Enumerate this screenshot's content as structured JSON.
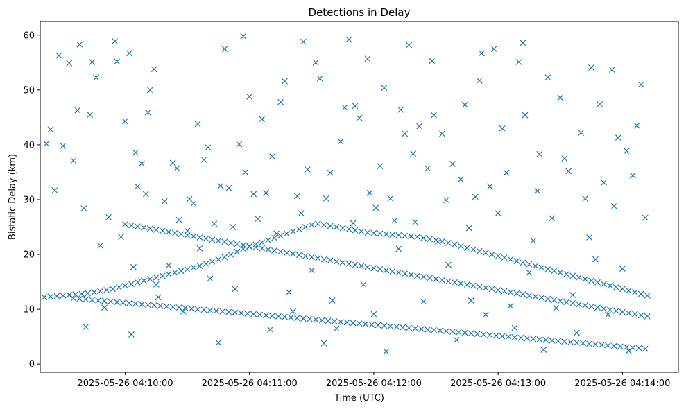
{
  "chart_data": {
    "type": "scatter",
    "title": "Detections in Delay",
    "xlabel": "Time (UTC)",
    "ylabel": "Bistatic Delay (km)",
    "marker": "x",
    "color": "#1f77b4",
    "xlim": [
      "2025-05-26 04:09:19",
      "2025-05-26 04:14:27"
    ],
    "ylim": [
      -1.5,
      62.5
    ],
    "x_ticks": [
      "2025-05-26 04:10:00",
      "2025-05-26 04:11:00",
      "2025-05-26 04:12:00",
      "2025-05-26 04:13:00",
      "2025-05-26 04:14:00"
    ],
    "y_ticks": [
      0,
      10,
      20,
      30,
      40,
      50,
      60
    ],
    "grid": false,
    "x_units": "seconds after 2025-05-26 04:09:00",
    "points": [
      [
        21,
        12.2
      ],
      [
        24,
        12.3
      ],
      [
        27,
        12.4
      ],
      [
        30,
        12.5
      ],
      [
        33,
        12.6
      ],
      [
        36,
        12.7
      ],
      [
        39,
        12.8
      ],
      [
        42,
        12.9
      ],
      [
        45,
        13.1
      ],
      [
        48,
        13.3
      ],
      [
        51,
        13.5
      ],
      [
        54,
        13.7
      ],
      [
        57,
        14.0
      ],
      [
        60,
        14.3
      ],
      [
        63,
        14.6
      ],
      [
        66,
        14.9
      ],
      [
        69,
        15.2
      ],
      [
        72,
        15.5
      ],
      [
        75,
        15.8
      ],
      [
        78,
        16.1
      ],
      [
        81,
        16.4
      ],
      [
        84,
        16.7
      ],
      [
        87,
        17.0
      ],
      [
        90,
        17.3
      ],
      [
        93,
        17.6
      ],
      [
        96,
        17.9
      ],
      [
        99,
        18.3
      ],
      [
        102,
        18.7
      ],
      [
        105,
        19.1
      ],
      [
        108,
        19.5
      ],
      [
        111,
        20.0
      ],
      [
        114,
        20.5
      ],
      [
        117,
        21.0
      ],
      [
        120,
        21.4
      ],
      [
        123,
        21.8
      ],
      [
        126,
        22.2
      ],
      [
        129,
        22.6
      ],
      [
        132,
        23.0
      ],
      [
        135,
        23.4
      ],
      [
        138,
        23.8
      ],
      [
        141,
        24.2
      ],
      [
        144,
        24.6
      ],
      [
        147,
        25.0
      ],
      [
        150,
        25.4
      ],
      [
        153,
        25.6
      ],
      [
        156,
        25.4
      ],
      [
        159,
        25.2
      ],
      [
        162,
        25.0
      ],
      [
        165,
        24.8
      ],
      [
        168,
        24.6
      ],
      [
        171,
        24.4
      ],
      [
        174,
        24.2
      ],
      [
        177,
        24.0
      ],
      [
        180,
        23.9
      ],
      [
        183,
        23.8
      ],
      [
        186,
        23.7
      ],
      [
        189,
        23.6
      ],
      [
        192,
        23.5
      ],
      [
        195,
        23.4
      ],
      [
        198,
        23.3
      ],
      [
        201,
        23.2
      ],
      [
        204,
        23.0
      ],
      [
        207,
        22.8
      ],
      [
        210,
        22.6
      ],
      [
        213,
        22.4
      ],
      [
        216,
        22.1
      ],
      [
        219,
        21.8
      ],
      [
        222,
        21.5
      ],
      [
        225,
        21.2
      ],
      [
        228,
        20.9
      ],
      [
        231,
        20.6
      ],
      [
        234,
        20.3
      ],
      [
        237,
        20.0
      ],
      [
        240,
        19.7
      ],
      [
        243,
        19.4
      ],
      [
        246,
        19.1
      ],
      [
        249,
        18.8
      ],
      [
        252,
        18.5
      ],
      [
        255,
        18.2
      ],
      [
        258,
        17.9
      ],
      [
        261,
        17.6
      ],
      [
        264,
        17.3
      ],
      [
        267,
        17.0
      ],
      [
        270,
        16.7
      ],
      [
        273,
        16.4
      ],
      [
        276,
        16.1
      ],
      [
        279,
        15.8
      ],
      [
        282,
        15.5
      ],
      [
        285,
        15.2
      ],
      [
        288,
        14.9
      ],
      [
        291,
        14.6
      ],
      [
        294,
        14.3
      ],
      [
        297,
        14.0
      ],
      [
        300,
        13.7
      ],
      [
        303,
        13.4
      ],
      [
        306,
        13.1
      ],
      [
        309,
        12.8
      ],
      [
        312,
        12.5
      ],
      [
        35,
        12.0
      ],
      [
        38,
        11.9
      ],
      [
        41,
        11.8
      ],
      [
        44,
        11.7
      ],
      [
        47,
        11.6
      ],
      [
        50,
        11.5
      ],
      [
        53,
        11.4
      ],
      [
        56,
        11.3
      ],
      [
        59,
        11.2
      ],
      [
        62,
        11.1
      ],
      [
        65,
        11.0
      ],
      [
        68,
        10.9
      ],
      [
        71,
        10.8
      ],
      [
        74,
        10.7
      ],
      [
        77,
        10.6
      ],
      [
        80,
        10.5
      ],
      [
        83,
        10.4
      ],
      [
        86,
        10.3
      ],
      [
        89,
        10.2
      ],
      [
        92,
        10.1
      ],
      [
        95,
        10.0
      ],
      [
        98,
        9.9
      ],
      [
        101,
        9.8
      ],
      [
        104,
        9.7
      ],
      [
        107,
        9.6
      ],
      [
        110,
        9.5
      ],
      [
        113,
        9.4
      ],
      [
        116,
        9.3
      ],
      [
        119,
        9.2
      ],
      [
        122,
        9.1
      ],
      [
        125,
        9.0
      ],
      [
        128,
        8.9
      ],
      [
        131,
        8.8
      ],
      [
        134,
        8.7
      ],
      [
        137,
        8.6
      ],
      [
        140,
        8.5
      ],
      [
        143,
        8.4
      ],
      [
        146,
        8.3
      ],
      [
        149,
        8.2
      ],
      [
        152,
        8.1
      ],
      [
        155,
        8.0
      ],
      [
        158,
        7.9
      ],
      [
        161,
        7.8
      ],
      [
        164,
        7.7
      ],
      [
        167,
        7.6
      ],
      [
        170,
        7.5
      ],
      [
        173,
        7.4
      ],
      [
        176,
        7.3
      ],
      [
        179,
        7.2
      ],
      [
        182,
        7.1
      ],
      [
        185,
        7.0
      ],
      [
        188,
        6.9
      ],
      [
        191,
        6.8
      ],
      [
        194,
        6.7
      ],
      [
        197,
        6.6
      ],
      [
        200,
        6.5
      ],
      [
        203,
        6.4
      ],
      [
        206,
        6.3
      ],
      [
        209,
        6.2
      ],
      [
        212,
        6.1
      ],
      [
        215,
        6.0
      ],
      [
        218,
        5.9
      ],
      [
        221,
        5.8
      ],
      [
        224,
        5.7
      ],
      [
        227,
        5.6
      ],
      [
        230,
        5.5
      ],
      [
        233,
        5.4
      ],
      [
        236,
        5.3
      ],
      [
        239,
        5.2
      ],
      [
        242,
        5.1
      ],
      [
        245,
        5.0
      ],
      [
        248,
        4.9
      ],
      [
        251,
        4.8
      ],
      [
        254,
        4.7
      ],
      [
        257,
        4.6
      ],
      [
        260,
        4.5
      ],
      [
        263,
        4.4
      ],
      [
        266,
        4.3
      ],
      [
        269,
        4.2
      ],
      [
        272,
        4.1
      ],
      [
        275,
        4.0
      ],
      [
        278,
        3.9
      ],
      [
        281,
        3.8
      ],
      [
        284,
        3.7
      ],
      [
        287,
        3.6
      ],
      [
        290,
        3.5
      ],
      [
        293,
        3.4
      ],
      [
        296,
        3.3
      ],
      [
        299,
        3.2
      ],
      [
        302,
        3.1
      ],
      [
        305,
        3.0
      ],
      [
        308,
        2.9
      ],
      [
        311,
        2.8
      ],
      [
        60,
        25.5
      ],
      [
        63,
        25.3
      ],
      [
        66,
        25.1
      ],
      [
        69,
        24.9
      ],
      [
        72,
        24.7
      ],
      [
        75,
        24.5
      ],
      [
        78,
        24.3
      ],
      [
        81,
        24.1
      ],
      [
        84,
        23.9
      ],
      [
        87,
        23.7
      ],
      [
        90,
        23.5
      ],
      [
        93,
        23.3
      ],
      [
        96,
        23.1
      ],
      [
        99,
        22.9
      ],
      [
        102,
        22.7
      ],
      [
        105,
        22.5
      ],
      [
        108,
        22.3
      ],
      [
        111,
        22.1
      ],
      [
        114,
        21.9
      ],
      [
        117,
        21.7
      ],
      [
        120,
        21.5
      ],
      [
        123,
        21.3
      ],
      [
        126,
        21.1
      ],
      [
        129,
        20.9
      ],
      [
        132,
        20.7
      ],
      [
        135,
        20.5
      ],
      [
        138,
        20.3
      ],
      [
        141,
        20.1
      ],
      [
        144,
        19.9
      ],
      [
        147,
        19.7
      ],
      [
        150,
        19.5
      ],
      [
        153,
        19.3
      ],
      [
        156,
        19.1
      ],
      [
        159,
        18.9
      ],
      [
        162,
        18.7
      ],
      [
        165,
        18.5
      ],
      [
        168,
        18.3
      ],
      [
        171,
        18.1
      ],
      [
        174,
        17.9
      ],
      [
        177,
        17.7
      ],
      [
        180,
        17.5
      ],
      [
        183,
        17.3
      ],
      [
        186,
        17.1
      ],
      [
        189,
        16.9
      ],
      [
        192,
        16.7
      ],
      [
        195,
        16.5
      ],
      [
        198,
        16.3
      ],
      [
        201,
        16.1
      ],
      [
        204,
        15.9
      ],
      [
        207,
        15.7
      ],
      [
        210,
        15.5
      ],
      [
        213,
        15.3
      ],
      [
        216,
        15.1
      ],
      [
        219,
        14.9
      ],
      [
        222,
        14.7
      ],
      [
        225,
        14.5
      ],
      [
        228,
        14.3
      ],
      [
        231,
        14.1
      ],
      [
        234,
        13.9
      ],
      [
        237,
        13.7
      ],
      [
        240,
        13.5
      ],
      [
        243,
        13.3
      ],
      [
        246,
        13.1
      ],
      [
        249,
        12.9
      ],
      [
        252,
        12.7
      ],
      [
        255,
        12.5
      ],
      [
        258,
        12.3
      ],
      [
        261,
        12.1
      ],
      [
        264,
        11.9
      ],
      [
        267,
        11.7
      ],
      [
        270,
        11.5
      ],
      [
        273,
        11.3
      ],
      [
        276,
        11.1
      ],
      [
        279,
        10.9
      ],
      [
        282,
        10.7
      ],
      [
        285,
        10.5
      ],
      [
        288,
        10.3
      ],
      [
        291,
        10.1
      ],
      [
        294,
        9.9
      ],
      [
        297,
        9.7
      ],
      [
        300,
        9.5
      ],
      [
        303,
        9.3
      ],
      [
        306,
        9.1
      ],
      [
        309,
        8.9
      ],
      [
        312,
        8.7
      ],
      [
        22,
        40.2
      ],
      [
        24,
        42.8
      ],
      [
        26,
        31.7
      ],
      [
        28,
        56.3
      ],
      [
        30,
        39.8
      ],
      [
        33,
        54.9
      ],
      [
        35,
        37.1
      ],
      [
        37,
        46.3
      ],
      [
        38,
        58.3
      ],
      [
        40,
        28.4
      ],
      [
        41,
        6.8
      ],
      [
        43,
        45.5
      ],
      [
        44,
        55.1
      ],
      [
        46,
        52.3
      ],
      [
        48,
        21.6
      ],
      [
        50,
        10.3
      ],
      [
        52,
        26.8
      ],
      [
        55,
        58.9
      ],
      [
        56,
        55.2
      ],
      [
        58,
        23.2
      ],
      [
        60,
        44.3
      ],
      [
        62,
        56.7
      ],
      [
        63,
        5.4
      ],
      [
        64,
        17.7
      ],
      [
        65,
        38.6
      ],
      [
        66,
        32.4
      ],
      [
        68,
        36.6
      ],
      [
        70,
        31.0
      ],
      [
        71,
        45.9
      ],
      [
        72,
        50.0
      ],
      [
        74,
        53.8
      ],
      [
        75,
        14.5
      ],
      [
        76,
        12.2
      ],
      [
        79,
        29.7
      ],
      [
        81,
        18.0
      ],
      [
        83,
        36.7
      ],
      [
        85,
        35.7
      ],
      [
        86,
        26.3
      ],
      [
        88,
        9.6
      ],
      [
        90,
        24.3
      ],
      [
        91,
        30.1
      ],
      [
        93,
        29.3
      ],
      [
        95,
        43.8
      ],
      [
        96,
        21.1
      ],
      [
        98,
        37.3
      ],
      [
        100,
        39.5
      ],
      [
        101,
        15.6
      ],
      [
        103,
        25.6
      ],
      [
        105,
        3.9
      ],
      [
        106,
        32.5
      ],
      [
        108,
        57.5
      ],
      [
        110,
        32.1
      ],
      [
        112,
        25.0
      ],
      [
        113,
        13.7
      ],
      [
        115,
        40.1
      ],
      [
        117,
        59.8
      ],
      [
        118,
        35.0
      ],
      [
        120,
        48.8
      ],
      [
        122,
        31.0
      ],
      [
        124,
        26.5
      ],
      [
        126,
        44.7
      ],
      [
        128,
        31.2
      ],
      [
        130,
        6.3
      ],
      [
        131,
        37.9
      ],
      [
        133,
        23.8
      ],
      [
        135,
        47.8
      ],
      [
        137,
        51.6
      ],
      [
        139,
        13.1
      ],
      [
        141,
        9.6
      ],
      [
        143,
        30.6
      ],
      [
        145,
        27.5
      ],
      [
        146,
        58.8
      ],
      [
        148,
        35.5
      ],
      [
        150,
        17.1
      ],
      [
        152,
        55.0
      ],
      [
        154,
        52.1
      ],
      [
        156,
        3.8
      ],
      [
        157,
        30.2
      ],
      [
        159,
        34.9
      ],
      [
        160,
        11.6
      ],
      [
        162,
        6.5
      ],
      [
        164,
        40.6
      ],
      [
        166,
        46.8
      ],
      [
        168,
        59.2
      ],
      [
        170,
        25.7
      ],
      [
        171,
        47.1
      ],
      [
        173,
        44.9
      ],
      [
        175,
        14.5
      ],
      [
        177,
        55.7
      ],
      [
        178,
        31.2
      ],
      [
        180,
        9.1
      ],
      [
        181,
        28.5
      ],
      [
        183,
        36.1
      ],
      [
        185,
        50.4
      ],
      [
        186,
        2.3
      ],
      [
        188,
        30.2
      ],
      [
        190,
        26.2
      ],
      [
        192,
        21.0
      ],
      [
        193,
        46.4
      ],
      [
        195,
        42.0
      ],
      [
        197,
        58.2
      ],
      [
        199,
        38.4
      ],
      [
        200,
        25.9
      ],
      [
        202,
        43.4
      ],
      [
        204,
        11.4
      ],
      [
        206,
        35.7
      ],
      [
        208,
        55.3
      ],
      [
        209,
        45.4
      ],
      [
        211,
        22.3
      ],
      [
        213,
        42.0
      ],
      [
        215,
        29.9
      ],
      [
        216,
        18.1
      ],
      [
        218,
        36.5
      ],
      [
        220,
        4.4
      ],
      [
        222,
        33.7
      ],
      [
        224,
        47.3
      ],
      [
        226,
        24.8
      ],
      [
        227,
        11.6
      ],
      [
        229,
        30.5
      ],
      [
        231,
        51.7
      ],
      [
        232,
        56.7
      ],
      [
        234,
        9.0
      ],
      [
        236,
        32.4
      ],
      [
        238,
        57.5
      ],
      [
        240,
        27.5
      ],
      [
        242,
        43.0
      ],
      [
        244,
        34.9
      ],
      [
        246,
        10.6
      ],
      [
        248,
        6.6
      ],
      [
        250,
        55.1
      ],
      [
        252,
        58.6
      ],
      [
        253,
        45.4
      ],
      [
        255,
        16.7
      ],
      [
        257,
        22.5
      ],
      [
        259,
        31.6
      ],
      [
        260,
        38.3
      ],
      [
        262,
        2.6
      ],
      [
        264,
        52.3
      ],
      [
        266,
        26.6
      ],
      [
        268,
        10.2
      ],
      [
        270,
        48.6
      ],
      [
        272,
        37.5
      ],
      [
        274,
        35.2
      ],
      [
        276,
        12.6
      ],
      [
        278,
        5.7
      ],
      [
        280,
        42.2
      ],
      [
        282,
        30.2
      ],
      [
        284,
        23.1
      ],
      [
        285,
        54.1
      ],
      [
        287,
        19.1
      ],
      [
        289,
        47.4
      ],
      [
        291,
        33.1
      ],
      [
        293,
        9.0
      ],
      [
        295,
        53.7
      ],
      [
        296,
        28.8
      ],
      [
        298,
        41.3
      ],
      [
        300,
        17.4
      ],
      [
        302,
        38.9
      ],
      [
        303,
        2.4
      ],
      [
        305,
        34.4
      ],
      [
        307,
        43.5
      ],
      [
        309,
        51.0
      ],
      [
        311,
        26.7
      ]
    ]
  }
}
